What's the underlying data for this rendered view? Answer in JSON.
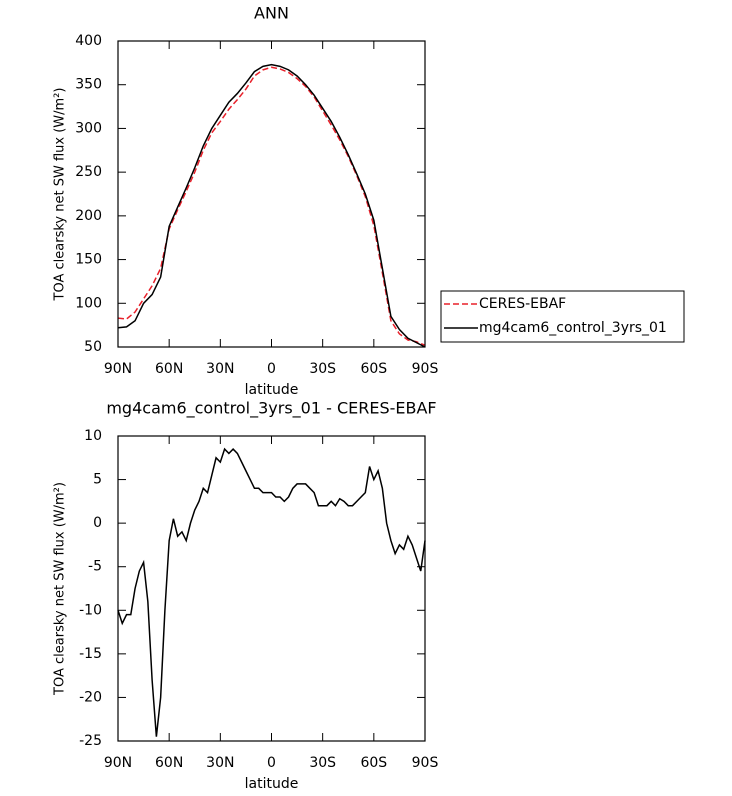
{
  "chart_data": [
    {
      "type": "line",
      "title": "ANN",
      "xlabel": "latitude",
      "ylabel": "TOA clearsky net SW flux (W/m²)",
      "x": [
        90,
        85,
        80,
        75,
        70,
        65,
        60,
        55,
        50,
        45,
        40,
        35,
        30,
        25,
        20,
        15,
        10,
        5,
        0,
        -5,
        -10,
        -15,
        -20,
        -25,
        -30,
        -35,
        -40,
        -45,
        -50,
        -55,
        -60,
        -65,
        -70,
        -75,
        -80,
        -85,
        -90
      ],
      "series": [
        {
          "name": "CERES-EBAF",
          "color": "#e8202a",
          "linestyle": "dashed",
          "values": [
            83,
            82,
            90,
            105,
            120,
            140,
            185,
            207,
            228,
            250,
            275,
            295,
            308,
            322,
            333,
            345,
            360,
            367,
            370,
            368,
            364,
            357,
            348,
            336,
            320,
            304,
            287,
            268,
            246,
            222,
            189,
            135,
            80,
            65,
            58,
            56,
            52
          ]
        },
        {
          "name": "mg4cam6_control_3yrs_01",
          "color": "#000000",
          "linestyle": "solid",
          "values": [
            72,
            73,
            80,
            100,
            110,
            130,
            188,
            210,
            232,
            255,
            280,
            300,
            315,
            330,
            340,
            352,
            365,
            371,
            373,
            371,
            367,
            360,
            350,
            338,
            323,
            308,
            290,
            270,
            248,
            225,
            195,
            140,
            85,
            70,
            60,
            55,
            50
          ]
        }
      ],
      "xlim": [
        90,
        -90
      ],
      "xticks": [
        {
          "value": 90,
          "label": "90N"
        },
        {
          "value": 60,
          "label": "60N"
        },
        {
          "value": 30,
          "label": "30N"
        },
        0,
        {
          "value": -30,
          "label": "30S"
        },
        {
          "value": -60,
          "label": "60S"
        },
        {
          "value": -90,
          "label": "90S"
        }
      ],
      "ylim": [
        50,
        400
      ],
      "yticks": [
        50,
        100,
        150,
        200,
        250,
        300,
        350,
        400
      ]
    },
    {
      "type": "line",
      "title": "mg4cam6_control_3yrs_01 - CERES-EBAF",
      "xlabel": "latitude",
      "ylabel": "TOA clearsky net SW flux (W/m²)",
      "x": [
        90,
        87.5,
        85,
        82.5,
        80,
        77.5,
        75,
        72.5,
        70,
        67.5,
        65,
        62.5,
        60,
        57.5,
        55,
        52.5,
        50,
        47.5,
        45,
        42.5,
        40,
        37.5,
        35,
        32.5,
        30,
        27.5,
        25,
        22.5,
        20,
        17.5,
        15,
        12.5,
        10,
        7.5,
        5,
        2.5,
        0,
        -2.5,
        -5,
        -7.5,
        -10,
        -12.5,
        -15,
        -17.5,
        -20,
        -22.5,
        -25,
        -27.5,
        -30,
        -32.5,
        -35,
        -37.5,
        -40,
        -42.5,
        -45,
        -47.5,
        -50,
        -52.5,
        -55,
        -57.5,
        -60,
        -62.5,
        -65,
        -67.5,
        -70,
        -72.5,
        -75,
        -77.5,
        -80,
        -82.5,
        -85,
        -87.5,
        -90
      ],
      "series": [
        {
          "color": "#000000",
          "linestyle": "solid",
          "values": [
            -10,
            -11.5,
            -10.5,
            -10.5,
            -7.5,
            -5.5,
            -4.5,
            -9,
            -18,
            -24.5,
            -20,
            -10,
            -2,
            0.5,
            -1.5,
            -1,
            -2,
            0,
            1.5,
            2.5,
            4,
            3.5,
            5.5,
            7.5,
            7,
            8.5,
            8,
            8.5,
            8,
            7,
            6,
            5,
            4,
            4,
            3.5,
            3.5,
            3.5,
            3,
            3,
            2.5,
            3,
            4,
            4.5,
            4.5,
            4.5,
            4,
            3.5,
            2,
            2,
            2,
            2.5,
            2,
            2.8,
            2.5,
            2,
            2,
            2.5,
            3,
            3.5,
            6.5,
            5,
            6,
            4,
            0,
            -2,
            -3.5,
            -2.5,
            -3,
            -1.5,
            -2.5,
            -4,
            -5.5,
            -2
          ]
        }
      ],
      "xlim": [
        90,
        -90
      ],
      "xticks": [
        {
          "value": 90,
          "label": "90N"
        },
        {
          "value": 60,
          "label": "60N"
        },
        {
          "value": 30,
          "label": "30N"
        },
        0,
        {
          "value": -30,
          "label": "30S"
        },
        {
          "value": -60,
          "label": "60S"
        },
        {
          "value": -90,
          "label": "90S"
        }
      ],
      "ylim": [
        -25,
        10
      ],
      "yticks": [
        -25,
        -20,
        -15,
        -10,
        -5,
        0,
        5,
        10
      ]
    }
  ]
}
